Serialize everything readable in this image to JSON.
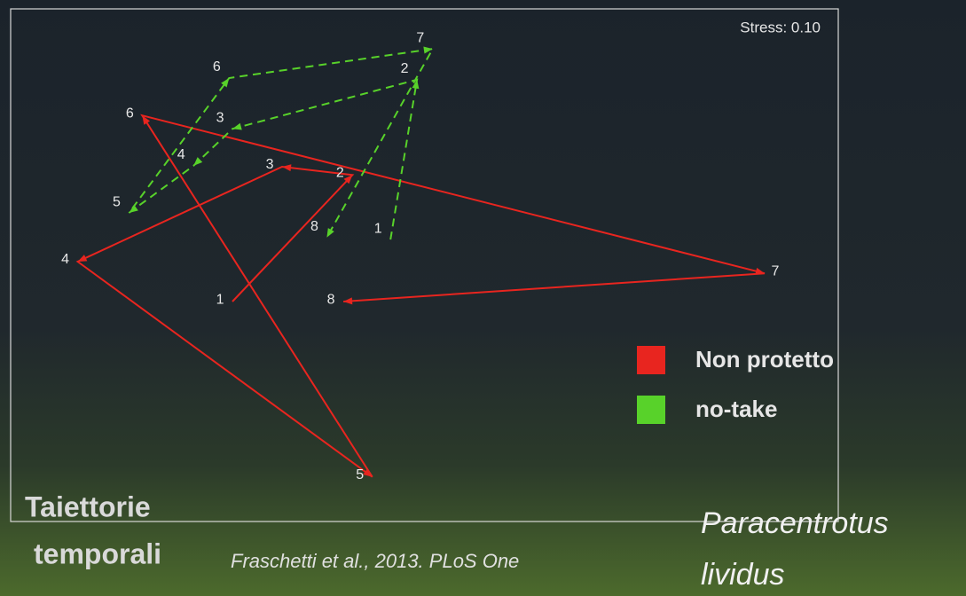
{
  "chart_data": {
    "type": "line",
    "title": [
      "Taiettorie",
      "temporali"
    ],
    "annotation": "Stress: 0.10",
    "source": "Fraschetti et al., 2013.  PLoS One",
    "species": [
      "Paracentrotus",
      "lividus"
    ],
    "xlim": [
      0,
      100
    ],
    "ylim": [
      0,
      100
    ],
    "series": [
      {
        "name": "Non protetto",
        "color": "#e8251f",
        "labels": [
          "1",
          "2",
          "3",
          "4",
          "5",
          "6",
          "7",
          "8"
        ],
        "x": [
          26.8,
          41.3,
          32.8,
          8.1,
          43.7,
          15.9,
          91.1,
          40.2
        ],
        "values": [
          42.9,
          67.6,
          69.2,
          50.7,
          8.7,
          79.2,
          48.4,
          42.9
        ]
      },
      {
        "name": "no-take",
        "color": "#58d22a",
        "labels": [
          "1",
          "2",
          "3",
          "4",
          "5",
          "6",
          "7",
          "8"
        ],
        "x": [
          45.9,
          49.1,
          26.8,
          22.1,
          14.3,
          26.4,
          51.0,
          38.2
        ],
        "values": [
          55.0,
          86.2,
          76.6,
          69.4,
          60.2,
          86.5,
          92.2,
          55.4
        ]
      }
    ]
  }
}
